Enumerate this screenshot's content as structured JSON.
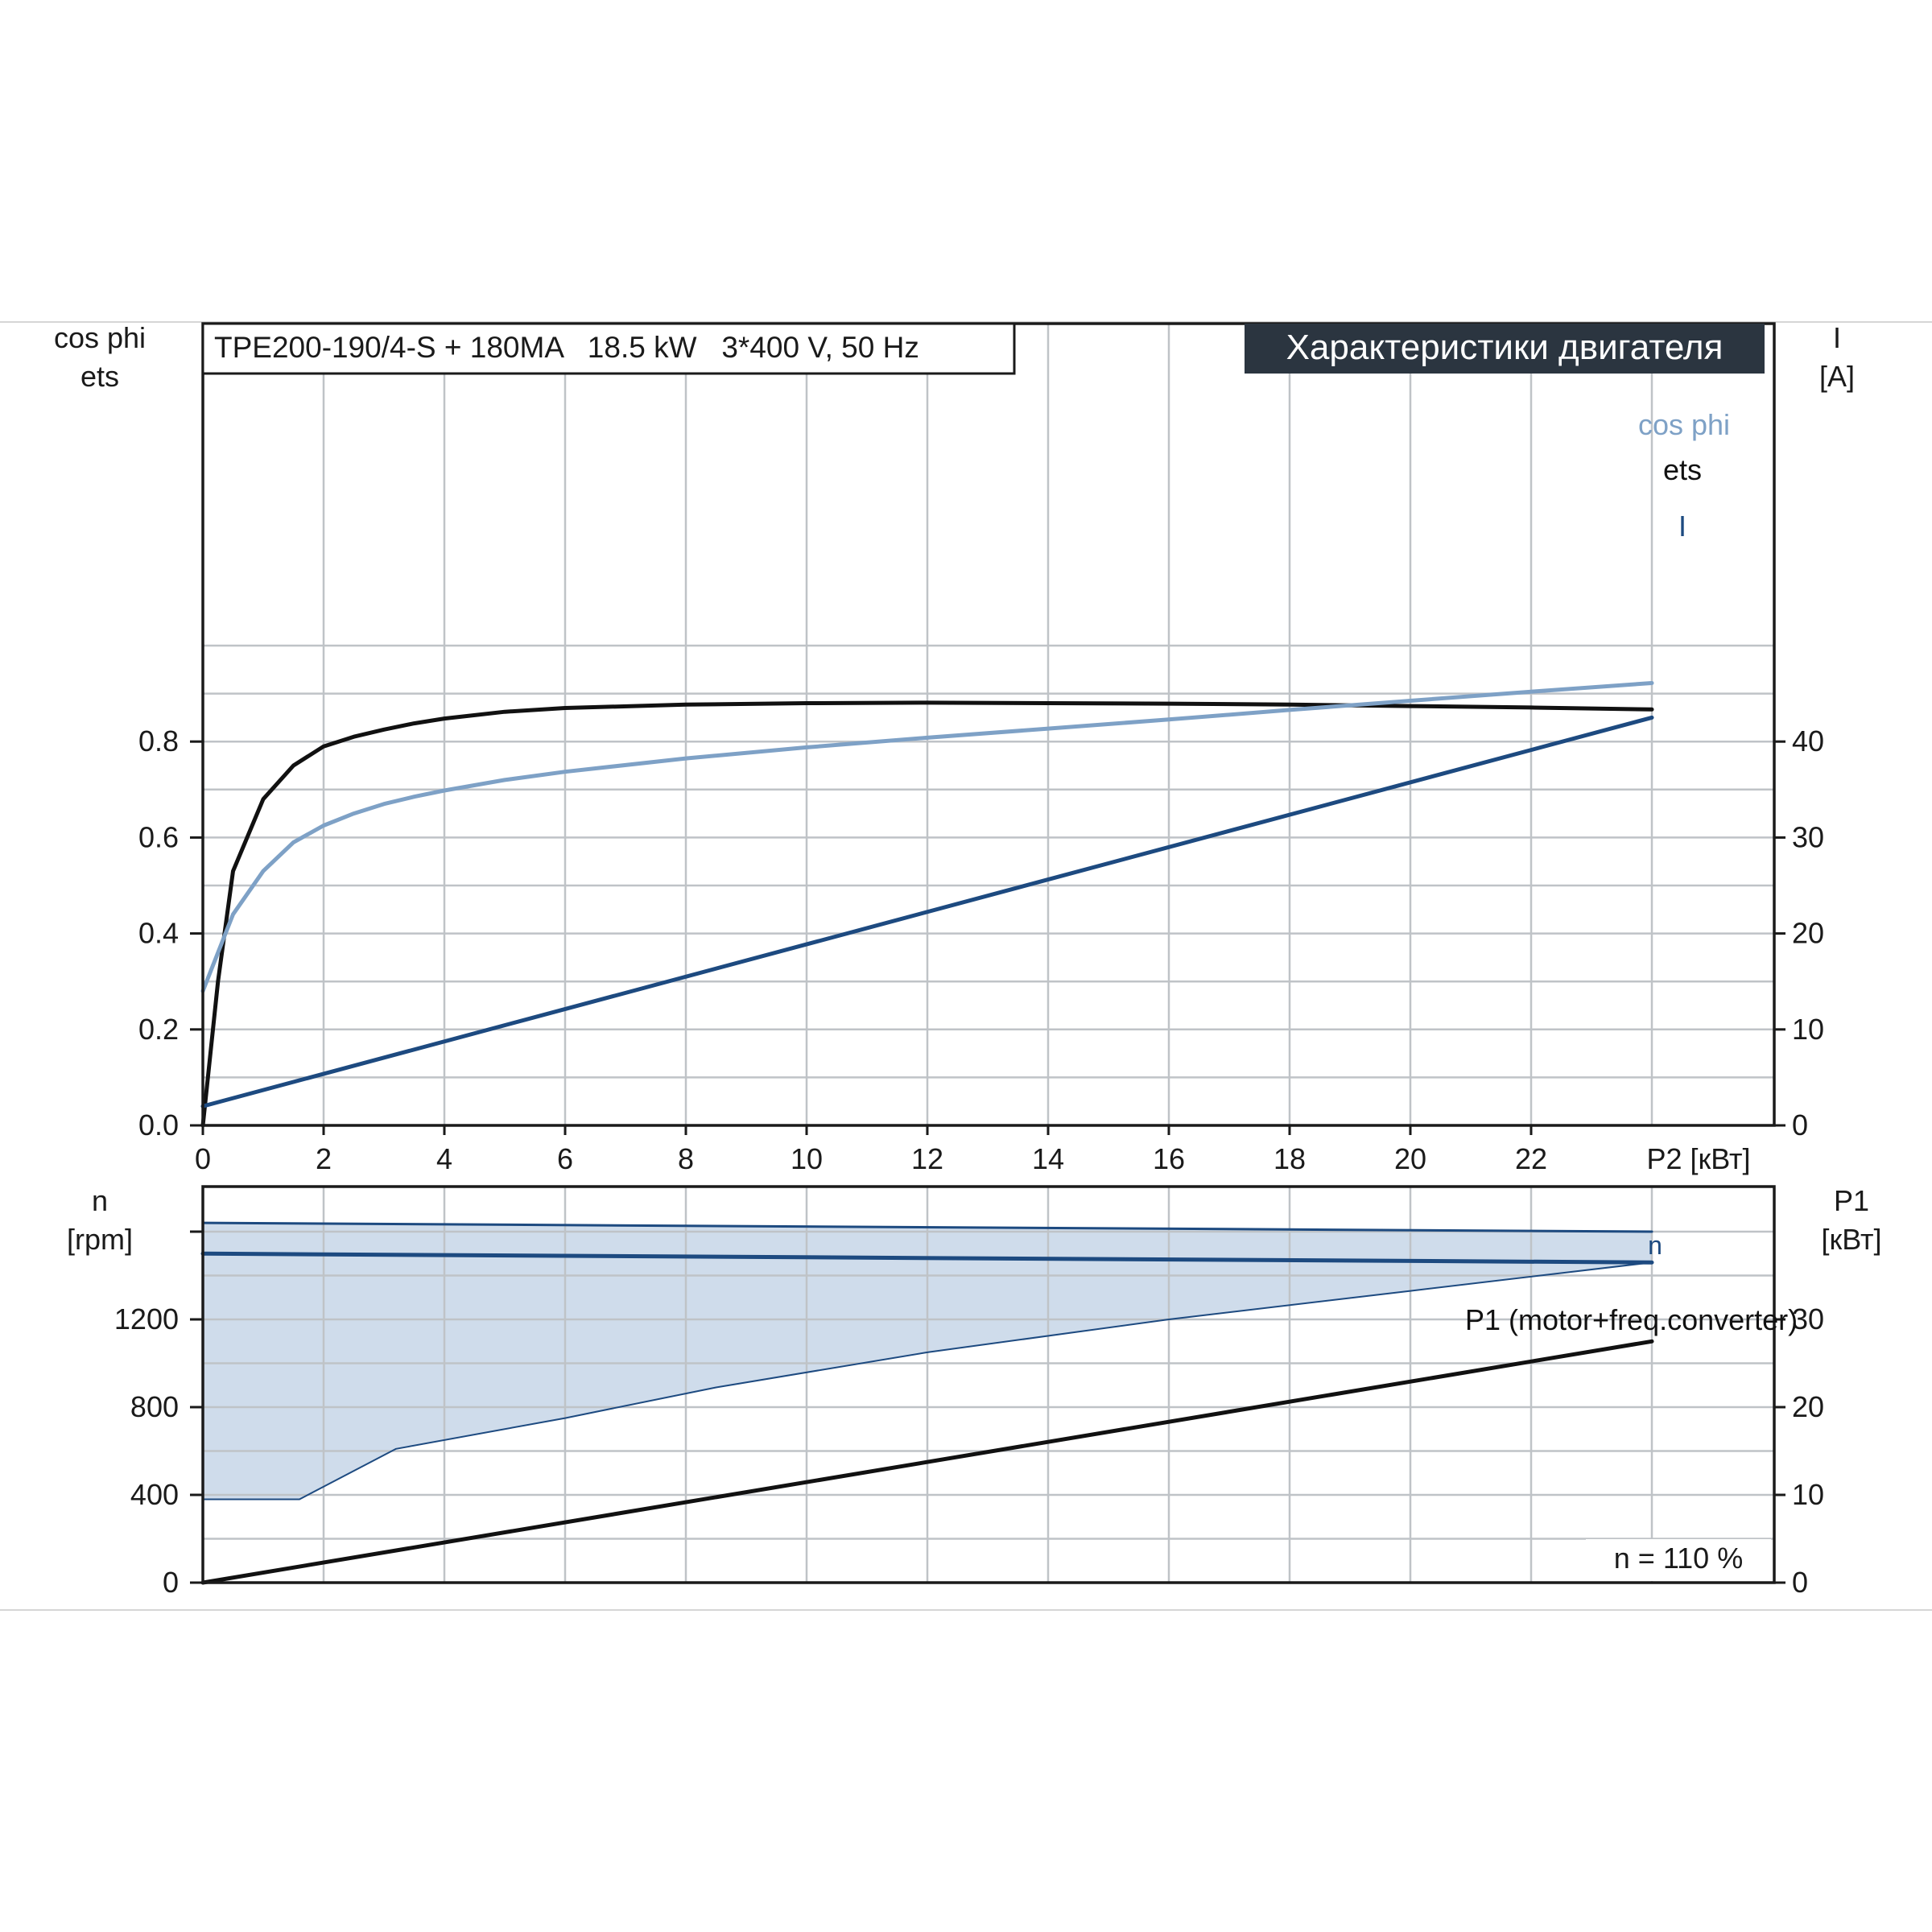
{
  "model_label": "TPE200-190/4-S + 180MA   18.5 kW   3*400 V, 50 Hz",
  "banner": "Характеристики двигателя",
  "speed_note": "n = 110 %",
  "colors": {
    "ets": "#111111",
    "cos_phi": "#7ea1c6",
    "current": "#1d4a80",
    "speed": "#1d4a80",
    "speed_band_fill": "#cfdceb",
    "p1": "#111111",
    "banner_bg": "#2b3540",
    "grid": "#bfc3c7"
  },
  "chart_data": [
    {
      "type": "line",
      "x_axis": {
        "label": "P2 [кВт]",
        "range": [
          0,
          26
        ],
        "ticks": [
          0,
          2,
          4,
          6,
          8,
          10,
          12,
          14,
          16,
          18,
          20,
          22
        ]
      },
      "y_left": {
        "label_lines": [
          "cos phi",
          "ets"
        ],
        "range": [
          0,
          1.1
        ],
        "ticks": [
          0.0,
          0.2,
          0.4,
          0.6,
          0.8
        ],
        "tick_labels": [
          "0.0",
          "0.2",
          "0.4",
          "0.6",
          "0.8"
        ]
      },
      "y_right": {
        "label_lines": [
          "I",
          "[A]"
        ],
        "range": [
          0,
          55
        ],
        "ticks": [
          0,
          10,
          20,
          30,
          40
        ],
        "tick_labels": [
          "0",
          "10",
          "20",
          "30",
          "40"
        ]
      },
      "grid": true,
      "series": [
        {
          "name": "ets",
          "axis": "left",
          "color_key": "ets",
          "x": [
            0,
            0.25,
            0.5,
            1,
            1.5,
            2,
            2.5,
            3,
            3.5,
            4,
            5,
            6,
            8,
            10,
            12,
            14,
            16,
            18,
            20,
            22,
            24
          ],
          "y": [
            0.0,
            0.3,
            0.53,
            0.68,
            0.75,
            0.79,
            0.81,
            0.825,
            0.838,
            0.848,
            0.862,
            0.87,
            0.877,
            0.88,
            0.881,
            0.88,
            0.879,
            0.877,
            0.874,
            0.871,
            0.867
          ]
        },
        {
          "name": "cos phi",
          "axis": "left",
          "color_key": "cos_phi",
          "x": [
            0,
            0.5,
            1,
            1.5,
            2,
            2.5,
            3,
            3.5,
            4,
            5,
            6,
            8,
            10,
            12,
            14,
            16,
            18,
            20,
            22,
            24
          ],
          "y": [
            0.28,
            0.44,
            0.53,
            0.59,
            0.625,
            0.65,
            0.67,
            0.685,
            0.698,
            0.72,
            0.737,
            0.765,
            0.788,
            0.808,
            0.827,
            0.846,
            0.866,
            0.885,
            0.904,
            0.922
          ]
        },
        {
          "name": "I",
          "axis": "right",
          "color_key": "current",
          "x": [
            0,
            24
          ],
          "y": [
            2,
            42.5
          ]
        }
      ]
    },
    {
      "type": "line",
      "x_axis": {
        "range": [
          0,
          26
        ],
        "ticks": [
          0,
          2,
          4,
          6,
          8,
          10,
          12,
          14,
          16,
          18,
          20,
          22
        ]
      },
      "y_left": {
        "label_lines": [
          "n",
          "[rpm]"
        ],
        "range": [
          0,
          1600
        ],
        "ticks": [
          0,
          400,
          800,
          1200
        ],
        "tick_labels": [
          "0",
          "400",
          "800",
          "1200"
        ]
      },
      "y_right": {
        "label_lines": [
          "P1",
          "[кВт]"
        ],
        "range": [
          0,
          40
        ],
        "ticks": [
          0,
          10,
          20,
          30
        ],
        "tick_labels": [
          "0",
          "10",
          "20",
          "30"
        ]
      },
      "grid": true,
      "speed_band": {
        "upper_x": [
          0,
          24
        ],
        "upper_y": [
          1640,
          1600
        ],
        "lower_x": [
          0,
          1.6,
          3.2,
          6,
          8.5,
          12,
          16,
          20,
          24
        ],
        "lower_y": [
          380,
          380,
          610,
          750,
          890,
          1050,
          1200,
          1330,
          1460
        ]
      },
      "series": [
        {
          "name": "n",
          "axis": "left",
          "color_key": "speed",
          "x": [
            0,
            24
          ],
          "y": [
            1500,
            1460
          ]
        },
        {
          "name": "P1 (motor+freq.converter)",
          "axis": "right",
          "color_key": "p1",
          "x": [
            0,
            24
          ],
          "y": [
            0,
            27.5
          ]
        }
      ]
    }
  ]
}
